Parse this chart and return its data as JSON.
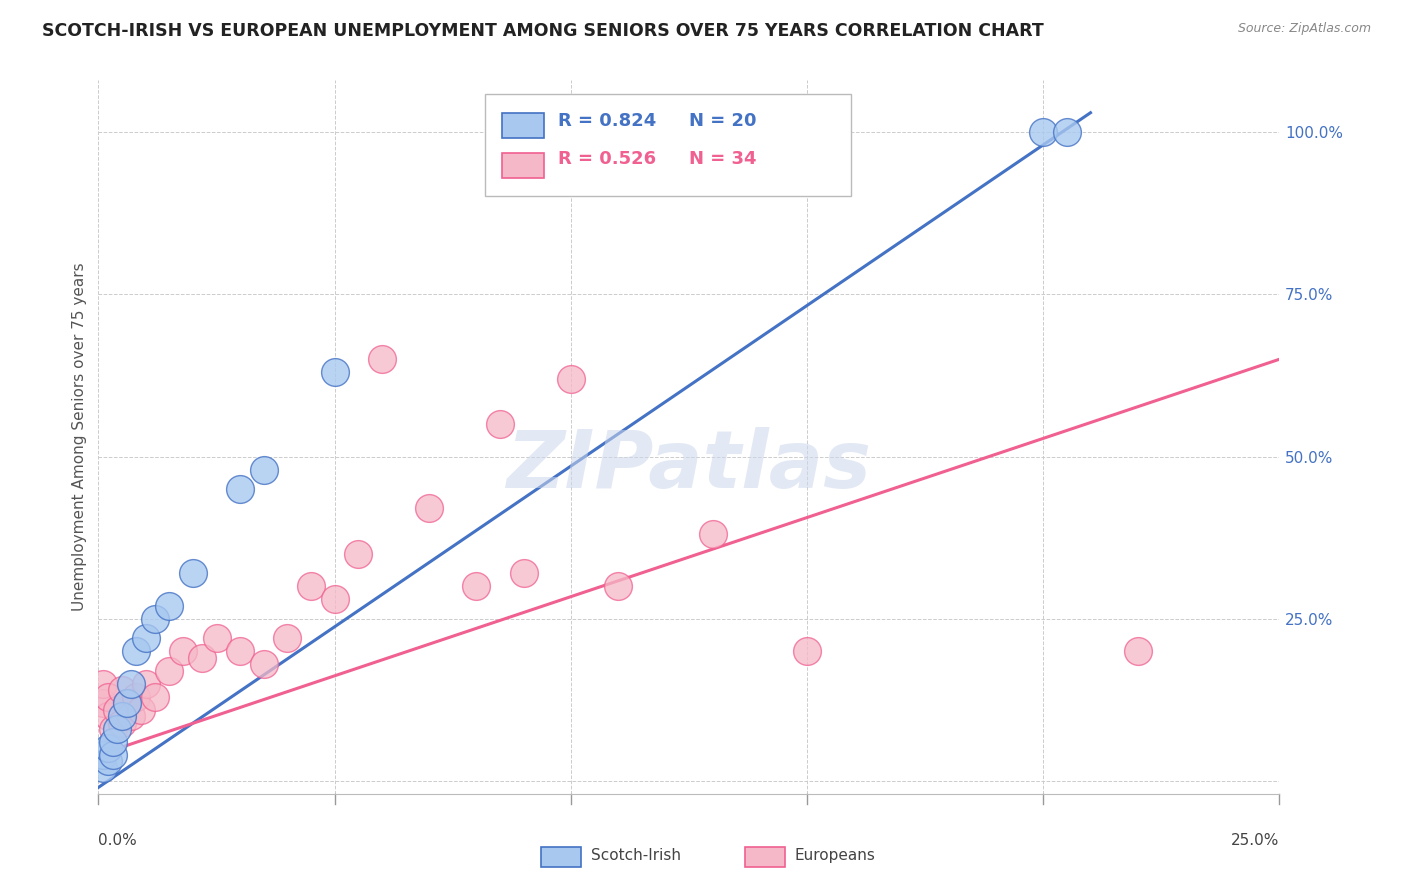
{
  "title": "SCOTCH-IRISH VS EUROPEAN UNEMPLOYMENT AMONG SENIORS OVER 75 YEARS CORRELATION CHART",
  "source": "Source: ZipAtlas.com",
  "ylabel": "Unemployment Among Seniors over 75 years",
  "y_ticks": [
    0.0,
    0.25,
    0.5,
    0.75,
    1.0
  ],
  "y_tick_labels": [
    "",
    "25.0%",
    "50.0%",
    "75.0%",
    "100.0%"
  ],
  "x_range": [
    0.0,
    0.25
  ],
  "y_range": [
    -0.02,
    1.08
  ],
  "scotch_irish_label": "Scotch-Irish",
  "europeans_label": "Europeans",
  "scotch_irish_R": "R = 0.824",
  "scotch_irish_N": "N = 20",
  "europeans_R": "R = 0.526",
  "europeans_N": "N = 34",
  "scotch_irish_color": "#a8c8f0",
  "europeans_color": "#f5b8c8",
  "scotch_irish_line_color": "#4472c4",
  "europeans_line_color": "#f06090",
  "background_color": "#ffffff",
  "watermark": "ZIPatlas",
  "scotch_irish_x": [
    0.001,
    0.001,
    0.002,
    0.002,
    0.003,
    0.003,
    0.004,
    0.005,
    0.006,
    0.007,
    0.008,
    0.01,
    0.012,
    0.015,
    0.02,
    0.03,
    0.035,
    0.05,
    0.2,
    0.205
  ],
  "scotch_irish_y": [
    0.02,
    0.04,
    0.03,
    0.05,
    0.04,
    0.06,
    0.08,
    0.1,
    0.12,
    0.15,
    0.2,
    0.22,
    0.25,
    0.27,
    0.32,
    0.45,
    0.48,
    0.63,
    1.0,
    1.0
  ],
  "europeans_x": [
    0.001,
    0.001,
    0.002,
    0.002,
    0.003,
    0.004,
    0.005,
    0.005,
    0.006,
    0.007,
    0.008,
    0.009,
    0.01,
    0.012,
    0.015,
    0.018,
    0.022,
    0.025,
    0.03,
    0.035,
    0.04,
    0.045,
    0.05,
    0.055,
    0.06,
    0.07,
    0.08,
    0.085,
    0.09,
    0.1,
    0.11,
    0.13,
    0.15,
    0.22
  ],
  "europeans_y": [
    0.12,
    0.15,
    0.1,
    0.13,
    0.08,
    0.11,
    0.09,
    0.14,
    0.12,
    0.1,
    0.13,
    0.11,
    0.15,
    0.13,
    0.17,
    0.2,
    0.19,
    0.22,
    0.2,
    0.18,
    0.22,
    0.3,
    0.28,
    0.35,
    0.65,
    0.42,
    0.3,
    0.55,
    0.32,
    0.62,
    0.3,
    0.38,
    0.2,
    0.2
  ],
  "si_line_x0": 0.0,
  "si_line_y0": -0.01,
  "si_line_x1": 0.21,
  "si_line_y1": 1.03,
  "eu_line_x0": 0.0,
  "eu_line_y0": 0.04,
  "eu_line_x1": 0.25,
  "eu_line_y1": 0.65
}
